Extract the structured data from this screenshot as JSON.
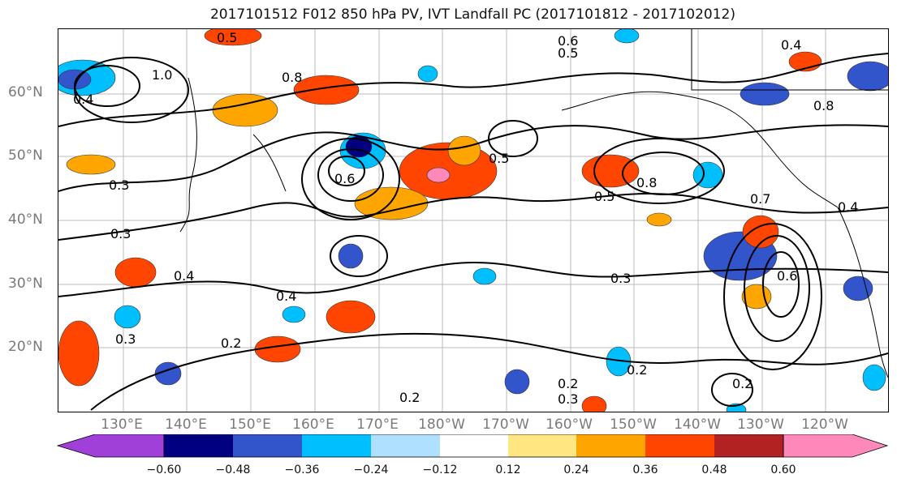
{
  "title": "2017101512 F012 850 hPa PV, IVT Landfall PC (2017101812 - 2017102012)",
  "lat_labels": [
    "60°N",
    "50°N",
    "40°N",
    "30°N",
    "20°N"
  ],
  "lon_labels": [
    "130°E",
    "140°E",
    "150°E",
    "160°E",
    "170°E",
    "180°W",
    "170°W",
    "160°W",
    "150°W",
    "140°W",
    "130°W",
    "120°W"
  ],
  "map": {
    "lat_range": [
      10,
      70
    ],
    "lon_range_east": [
      121,
      251
    ],
    "contour_labels": [
      "0.5",
      "0.8",
      "0.4",
      "1.0",
      "0.3",
      "0.6",
      "0.4",
      "0.5",
      "0.2",
      "0.3",
      "0.4",
      "0.2",
      "0.5",
      "0.6",
      "0.3",
      "0.8",
      "0.5",
      "0.7",
      "0.4",
      "0.3",
      "0.2",
      "0.2",
      "0.3",
      "0.8",
      "0.6",
      "0.2",
      "0.4"
    ]
  },
  "colorbar": {
    "ticks": [
      "−0.60",
      "−0.48",
      "−0.36",
      "−0.24",
      "−0.12",
      "0.12",
      "0.24",
      "0.36",
      "0.48",
      "0.60"
    ],
    "colors": [
      "#a040d8",
      "#000080",
      "#3355cc",
      "#00bfff",
      "#b0e0ff",
      "#ffffff",
      "#ffe680",
      "#ffa500",
      "#ff4500",
      "#b22222",
      "#ff88bb"
    ]
  }
}
